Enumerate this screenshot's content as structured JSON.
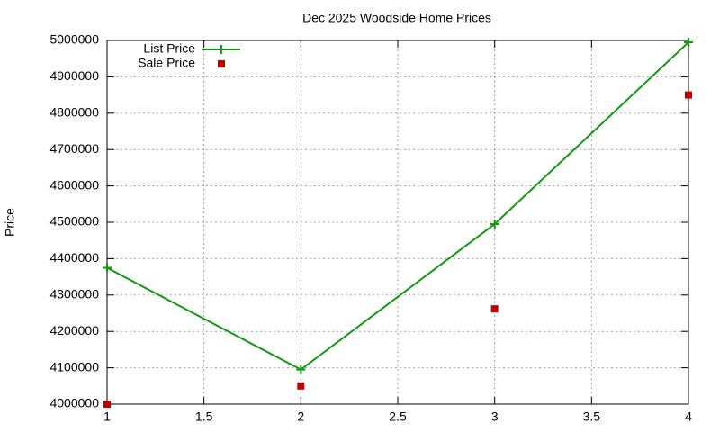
{
  "chart_data": {
    "type": "line",
    "title": "Dec 2025 Woodside Home Prices",
    "y_label": "Price",
    "x": [
      1,
      2,
      3,
      4
    ],
    "series": [
      {
        "name": "List Price",
        "color": "#119911",
        "marker": "plus",
        "line": true,
        "values": [
          4375000,
          4095000,
          4495000,
          4995000
        ]
      },
      {
        "name": "Sale Price",
        "color": "#c00000",
        "marker": "square",
        "line": false,
        "values": [
          4000000,
          4050000,
          4262000,
          4850000
        ]
      }
    ],
    "xlim": [
      1,
      4
    ],
    "xticks": [
      1,
      1.5,
      2,
      2.5,
      3,
      3.5,
      4
    ],
    "ylim": [
      4000000,
      5000000
    ],
    "yticks": [
      4000000,
      4100000,
      4200000,
      4300000,
      4400000,
      4500000,
      4600000,
      4700000,
      4800000,
      4900000,
      5000000
    ],
    "grid": true,
    "legend": "top-left"
  }
}
